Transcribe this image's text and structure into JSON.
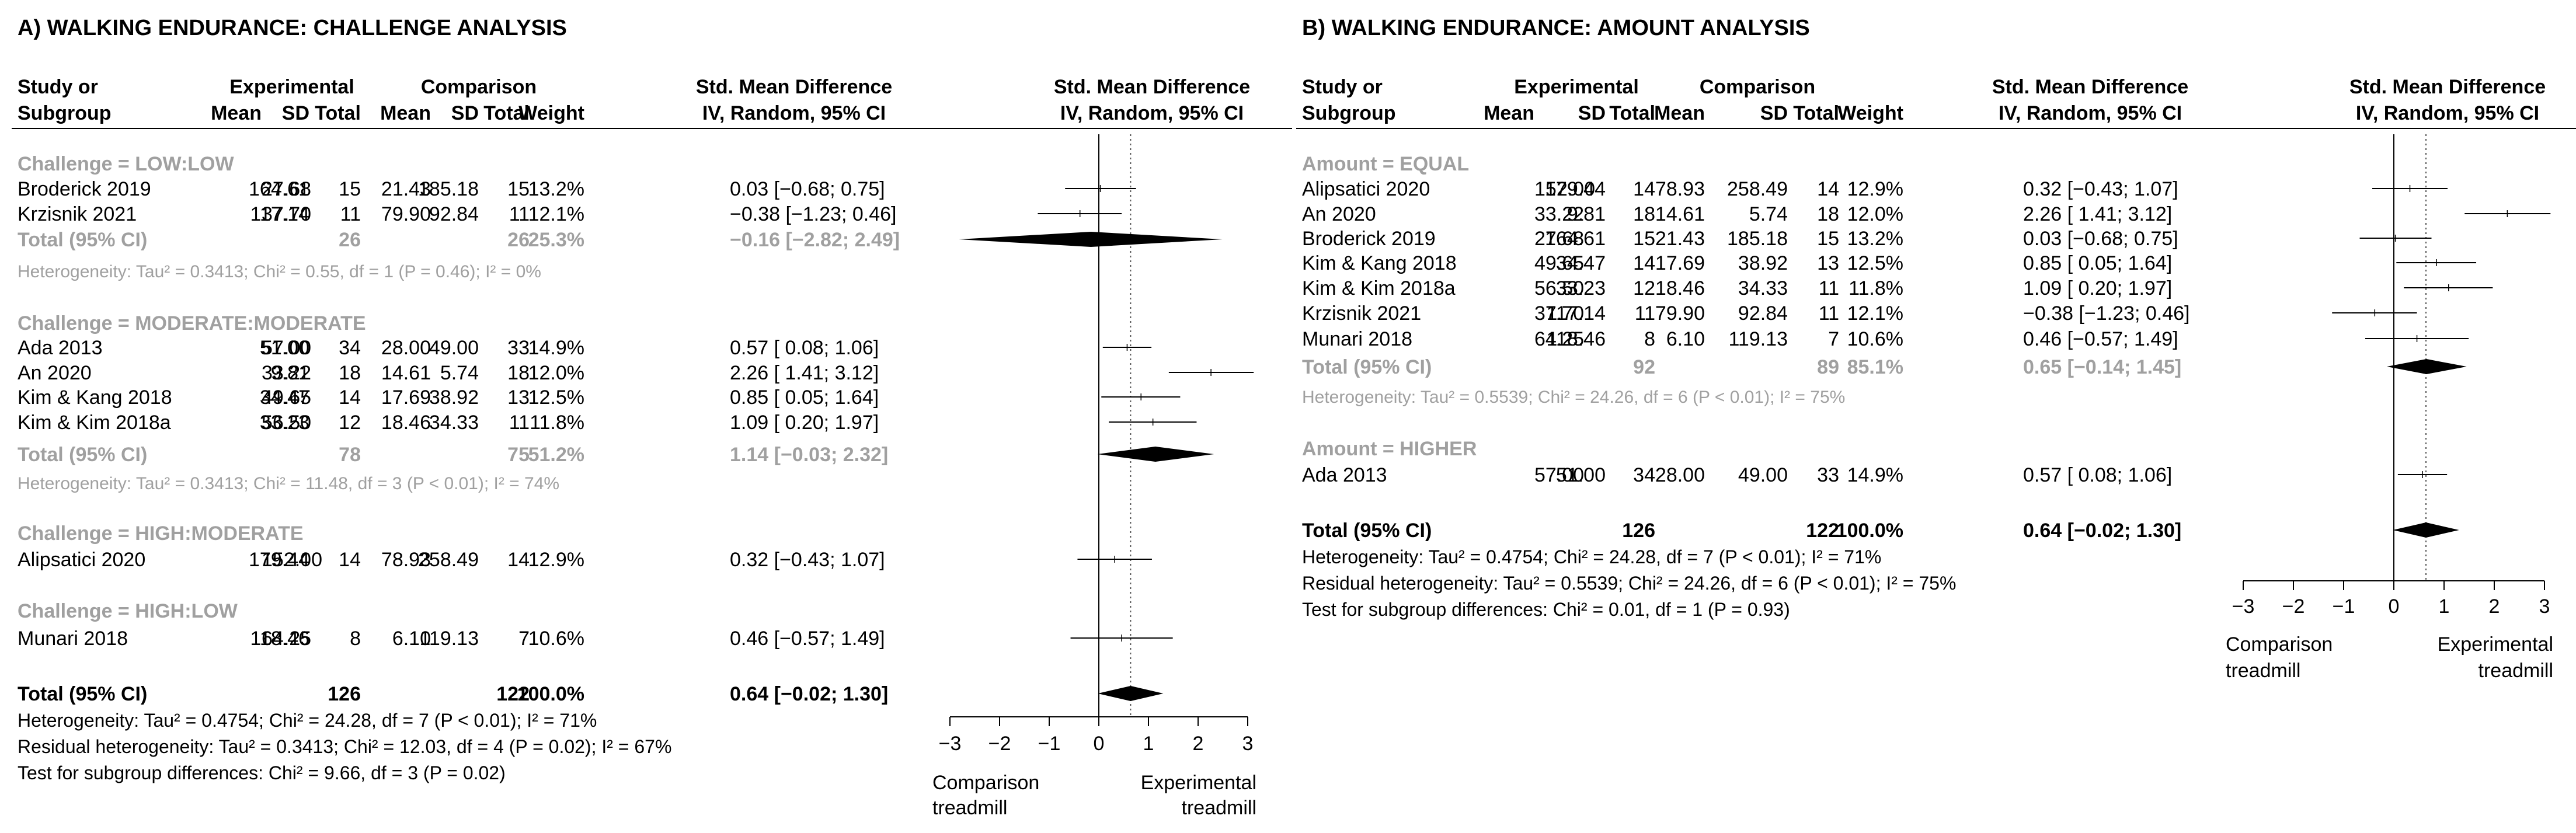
{
  "panels": [
    {
      "title": "A) WALKING ENDURANCE: CHALLENGE ANALYSIS",
      "headers": {
        "study_line1": "Study or",
        "study_line2": "Subgroup",
        "experimental": "Experimental",
        "comparison": "Comparison",
        "smd_line1": "Std. Mean Difference",
        "smd_line2": "IV, Random, 95% CI",
        "plot_line1": "Std. Mean Difference",
        "plot_line2": "IV, Random, 95% CI",
        "mean": "Mean",
        "sd": "SD",
        "total": "Total",
        "weight": "Weight"
      },
      "groups": [
        {
          "label": "Challenge = LOW:LOW",
          "studies": [
            {
              "name": "Broderick 2019",
              "e_mean": "27.68",
              "e_sd": "164.61",
              "e_total": "15",
              "c_mean": "21.43",
              "c_sd": "185.18",
              "c_total": "15",
              "weight": "13.2%",
              "ci": "0.03 [−0.68; 0.75]",
              "est": 0.03,
              "lo": -0.68,
              "hi": 0.75
            },
            {
              "name": "Krzisnik 2021",
              "e_mean": "37.70",
              "e_sd": "117.14",
              "e_total": "11",
              "c_mean": "79.90",
              "c_sd": "92.84",
              "c_total": "11",
              "weight": "12.1%",
              "ci": "−0.38 [−1.23; 0.46]",
              "est": -0.38,
              "lo": -1.23,
              "hi": 0.46
            }
          ],
          "total": {
            "label": "Total (95% CI)",
            "e_total": "26",
            "c_total": "26",
            "weight": "25.3%",
            "ci": "−0.16 [−2.82; 2.49]",
            "est": -0.16,
            "lo": -2.82,
            "hi": 2.49
          },
          "heterogeneity": "Heterogeneity: Tau² = 0.3413; Chi² = 0.55, df = 1 (P = 0.46); I² = 0%"
        },
        {
          "label": "Challenge = MODERATE:MODERATE",
          "studies": [
            {
              "name": "Ada 2013",
              "e_mean": "57.00",
              "e_sd": "51.00",
              "e_total": "34",
              "c_mean": "28.00",
              "c_sd": "49.00",
              "c_total": "33",
              "weight": "14.9%",
              "ci": "0.57 [ 0.08; 1.06]",
              "est": 0.57,
              "lo": 0.08,
              "hi": 1.06
            },
            {
              "name": "An 2020",
              "e_mean": "33.22",
              "e_sd": "9.81",
              "e_total": "18",
              "c_mean": "14.61",
              "c_sd": "5.74",
              "c_total": "18",
              "weight": "12.0%",
              "ci": "2.26 [ 1.41; 3.12]",
              "est": 2.26,
              "lo": 1.41,
              "hi": 3.12
            },
            {
              "name": "Kim & Kang 2018",
              "e_mean": "49.65",
              "e_sd": "34.47",
              "e_total": "14",
              "c_mean": "17.69",
              "c_sd": "38.92",
              "c_total": "13",
              "weight": "12.5%",
              "ci": "0.85 [ 0.05; 1.64]",
              "est": 0.85,
              "lo": 0.05,
              "hi": 1.64
            },
            {
              "name": "Kim & Kim 2018a",
              "e_mean": "56.50",
              "e_sd": "33.23",
              "e_total": "12",
              "c_mean": "18.46",
              "c_sd": "34.33",
              "c_total": "11",
              "weight": "11.8%",
              "ci": "1.09 [ 0.20; 1.97]",
              "est": 1.09,
              "lo": 0.2,
              "hi": 1.97
            }
          ],
          "total": {
            "label": "Total (95% CI)",
            "e_total": "78",
            "c_total": "75",
            "weight": "51.2%",
            "ci": "1.14 [−0.03; 2.32]",
            "est": 1.14,
            "lo": -0.03,
            "hi": 2.32
          },
          "heterogeneity": "Heterogeneity: Tau² = 0.3413; Chi² = 11.48, df = 3 (P < 0.01); I² = 74%"
        },
        {
          "label": "Challenge = HIGH:MODERATE",
          "studies": [
            {
              "name": "Alipsatici 2020",
              "e_mean": "152.00",
              "e_sd": "179.44",
              "e_total": "14",
              "c_mean": "78.93",
              "c_sd": "258.49",
              "c_total": "14",
              "weight": "12.9%",
              "ci": "0.32 [−0.43; 1.07]",
              "est": 0.32,
              "lo": -0.43,
              "hi": 1.07
            }
          ]
        },
        {
          "label": "Challenge = HIGH:LOW",
          "studies": [
            {
              "name": "Munari 2018",
              "e_mean": "64.25",
              "e_sd": "118.46",
              "e_total": "8",
              "c_mean": "6.10",
              "c_sd": "119.13",
              "c_total": "7",
              "weight": "10.6%",
              "ci": "0.46 [−0.57; 1.49]",
              "est": 0.46,
              "lo": -0.57,
              "hi": 1.49
            }
          ]
        }
      ],
      "overall": {
        "label": "Total (95% CI)",
        "e_total": "126",
        "c_total": "122",
        "weight": "100.0%",
        "ci": "0.64 [−0.02; 1.30]",
        "est": 0.64,
        "lo": -0.02,
        "hi": 1.3
      },
      "footer": [
        "Heterogeneity: Tau² = 0.4754; Chi² = 24.28, df = 7 (P < 0.01); I² = 71%",
        "Residual heterogeneity: Tau² = 0.3413; Chi² = 12.03, df = 4 (P = 0.02); I² = 67%",
        "Test for subgroup differences: Chi² = 9.66, df = 3 (P = 0.02)"
      ],
      "axis": {
        "ticks": [
          "−3",
          "−2",
          "−1",
          "0",
          "1",
          "2",
          "3"
        ],
        "tick_values": [
          -3,
          -2,
          -1,
          0,
          1,
          2,
          3
        ],
        "left_label_1": "Comparison",
        "left_label_2": "treadmill",
        "right_label_1": "Experimental",
        "right_label_2": "treadmill"
      }
    },
    {
      "title": "B) WALKING ENDURANCE: AMOUNT ANALYSIS",
      "headers": {
        "study_line1": "Study or",
        "study_line2": "Subgroup",
        "experimental": "Experimental",
        "comparison": "Comparison",
        "smd_line1": "Std. Mean Difference",
        "smd_line2": "IV, Random, 95% CI",
        "plot_line1": "Std. Mean Difference",
        "plot_line2": "IV, Random, 95% CI",
        "mean": "Mean",
        "sd": "SD",
        "total": "Total",
        "weight": "Weight"
      },
      "groups": [
        {
          "label": "Amount = EQUAL",
          "studies": [
            {
              "name": "Alipsatici 2020",
              "e_mean": "152.00",
              "e_sd": "179.44",
              "e_total": "14",
              "c_mean": "78.93",
              "c_sd": "258.49",
              "c_total": "14",
              "weight": "12.9%",
              "ci": "0.32 [−0.43; 1.07]",
              "est": 0.32,
              "lo": -0.43,
              "hi": 1.07
            },
            {
              "name": "An 2020",
              "e_mean": "33.22",
              "e_sd": "9.81",
              "e_total": "18",
              "c_mean": "14.61",
              "c_sd": "5.74",
              "c_total": "18",
              "weight": "12.0%",
              "ci": "2.26 [ 1.41; 3.12]",
              "est": 2.26,
              "lo": 1.41,
              "hi": 3.12
            },
            {
              "name": "Broderick 2019",
              "e_mean": "27.68",
              "e_sd": "164.61",
              "e_total": "15",
              "c_mean": "21.43",
              "c_sd": "185.18",
              "c_total": "15",
              "weight": "13.2%",
              "ci": "0.03 [−0.68; 0.75]",
              "est": 0.03,
              "lo": -0.68,
              "hi": 0.75
            },
            {
              "name": "Kim & Kang 2018",
              "e_mean": "49.65",
              "e_sd": "34.47",
              "e_total": "14",
              "c_mean": "17.69",
              "c_sd": "38.92",
              "c_total": "13",
              "weight": "12.5%",
              "ci": "0.85 [ 0.05; 1.64]",
              "est": 0.85,
              "lo": 0.05,
              "hi": 1.64
            },
            {
              "name": "Kim & Kim 2018a",
              "e_mean": "56.50",
              "e_sd": "33.23",
              "e_total": "12",
              "c_mean": "18.46",
              "c_sd": "34.33",
              "c_total": "11",
              "weight": "11.8%",
              "ci": "1.09 [ 0.20; 1.97]",
              "est": 1.09,
              "lo": 0.2,
              "hi": 1.97
            },
            {
              "name": "Krzisnik 2021",
              "e_mean": "37.70",
              "e_sd": "117.14",
              "e_total": "11",
              "c_mean": "79.90",
              "c_sd": "92.84",
              "c_total": "11",
              "weight": "12.1%",
              "ci": "−0.38 [−1.23; 0.46]",
              "est": -0.38,
              "lo": -1.23,
              "hi": 0.46
            },
            {
              "name": "Munari 2018",
              "e_mean": "64.25",
              "e_sd": "118.46",
              "e_total": "8",
              "c_mean": "6.10",
              "c_sd": "119.13",
              "c_total": "7",
              "weight": "10.6%",
              "ci": "0.46 [−0.57; 1.49]",
              "est": 0.46,
              "lo": -0.57,
              "hi": 1.49
            }
          ],
          "total": {
            "label": "Total (95% CI)",
            "e_total": "92",
            "c_total": "89",
            "weight": "85.1%",
            "ci": "0.65 [−0.14; 1.45]",
            "est": 0.65,
            "lo": -0.14,
            "hi": 1.45
          },
          "heterogeneity": "Heterogeneity: Tau² = 0.5539; Chi² = 24.26, df = 6 (P < 0.01); I² = 75%"
        },
        {
          "label": "Amount = HIGHER",
          "studies": [
            {
              "name": "Ada 2013",
              "e_mean": "57.00",
              "e_sd": "51.00",
              "e_total": "34",
              "c_mean": "28.00",
              "c_sd": "49.00",
              "c_total": "33",
              "weight": "14.9%",
              "ci": "0.57 [ 0.08; 1.06]",
              "est": 0.57,
              "lo": 0.08,
              "hi": 1.06
            }
          ]
        }
      ],
      "overall": {
        "label": "Total (95% CI)",
        "e_total": "126",
        "c_total": "122",
        "weight": "100.0%",
        "ci": "0.64 [−0.02; 1.30]",
        "est": 0.64,
        "lo": -0.02,
        "hi": 1.3
      },
      "footer": [
        "Heterogeneity: Tau² = 0.4754; Chi² = 24.28, df = 7 (P < 0.01); I² = 71%",
        "Residual heterogeneity: Tau² = 0.5539; Chi² = 24.26, df = 6 (P < 0.01); I² = 75%",
        "Test for subgroup differences: Chi² = 0.01, df = 1 (P = 0.93)"
      ],
      "axis": {
        "ticks": [
          "−3",
          "−2",
          "−1",
          "0",
          "1",
          "2",
          "3"
        ],
        "tick_values": [
          -3,
          -2,
          -1,
          0,
          1,
          2,
          3
        ],
        "left_label_1": "Comparison",
        "left_label_2": "treadmill",
        "right_label_1": "Experimental",
        "right_label_2": "treadmill"
      }
    }
  ],
  "colors": {
    "text": "#000000",
    "subgroup_text": "#a0a0a0",
    "box_fill": "#22e01c",
    "diamond": "#000000",
    "subgroup_diamond": "#000000"
  },
  "chart_data": [
    {
      "type": "forest",
      "title": "A) WALKING ENDURANCE: CHALLENGE ANALYSIS",
      "xlabel": "Std. Mean Difference, IV, Random, 95% CI",
      "xlim": [
        -3,
        3
      ],
      "reference_line": 0,
      "overall_estimate": 0.64,
      "series": [
        {
          "name": "Broderick 2019",
          "est": 0.03,
          "lo": -0.68,
          "hi": 0.75,
          "weight": 13.2
        },
        {
          "name": "Krzisnik 2021",
          "est": -0.38,
          "lo": -1.23,
          "hi": 0.46,
          "weight": 12.1
        },
        {
          "name": "Challenge = LOW:LOW total",
          "est": -0.16,
          "lo": -2.82,
          "hi": 2.49,
          "weight": 25.3
        },
        {
          "name": "Ada 2013",
          "est": 0.57,
          "lo": 0.08,
          "hi": 1.06,
          "weight": 14.9
        },
        {
          "name": "An 2020",
          "est": 2.26,
          "lo": 1.41,
          "hi": 3.12,
          "weight": 12.0
        },
        {
          "name": "Kim & Kang 2018",
          "est": 0.85,
          "lo": 0.05,
          "hi": 1.64,
          "weight": 12.5
        },
        {
          "name": "Kim & Kim 2018a",
          "est": 1.09,
          "lo": 0.2,
          "hi": 1.97,
          "weight": 11.8
        },
        {
          "name": "Challenge = MODERATE:MODERATE total",
          "est": 1.14,
          "lo": -0.03,
          "hi": 2.32,
          "weight": 51.2
        },
        {
          "name": "Alipsatici 2020",
          "est": 0.32,
          "lo": -0.43,
          "hi": 1.07,
          "weight": 12.9
        },
        {
          "name": "Munari 2018",
          "est": 0.46,
          "lo": -0.57,
          "hi": 1.49,
          "weight": 10.6
        },
        {
          "name": "Total (95% CI)",
          "est": 0.64,
          "lo": -0.02,
          "hi": 1.3,
          "weight": 100.0
        }
      ]
    },
    {
      "type": "forest",
      "title": "B) WALKING ENDURANCE: AMOUNT ANALYSIS",
      "xlabel": "Std. Mean Difference, IV, Random, 95% CI",
      "xlim": [
        -3,
        3
      ],
      "reference_line": 0,
      "overall_estimate": 0.64,
      "series": [
        {
          "name": "Alipsatici 2020",
          "est": 0.32,
          "lo": -0.43,
          "hi": 1.07,
          "weight": 12.9
        },
        {
          "name": "An 2020",
          "est": 2.26,
          "lo": 1.41,
          "hi": 3.12,
          "weight": 12.0
        },
        {
          "name": "Broderick 2019",
          "est": 0.03,
          "lo": -0.68,
          "hi": 0.75,
          "weight": 13.2
        },
        {
          "name": "Kim & Kang 2018",
          "est": 0.85,
          "lo": 0.05,
          "hi": 1.64,
          "weight": 12.5
        },
        {
          "name": "Kim & Kim 2018a",
          "est": 1.09,
          "lo": 0.2,
          "hi": 1.97,
          "weight": 11.8
        },
        {
          "name": "Krzisnik 2021",
          "est": -0.38,
          "lo": -1.23,
          "hi": 0.46,
          "weight": 12.1
        },
        {
          "name": "Munari 2018",
          "est": 0.46,
          "lo": -0.57,
          "hi": 1.49,
          "weight": 10.6
        },
        {
          "name": "Amount = EQUAL total",
          "est": 0.65,
          "lo": -0.14,
          "hi": 1.45,
          "weight": 85.1
        },
        {
          "name": "Ada 2013",
          "est": 0.57,
          "lo": 0.08,
          "hi": 1.06,
          "weight": 14.9
        },
        {
          "name": "Total (95% CI)",
          "est": 0.64,
          "lo": -0.02,
          "hi": 1.3,
          "weight": 100.0
        }
      ]
    }
  ]
}
